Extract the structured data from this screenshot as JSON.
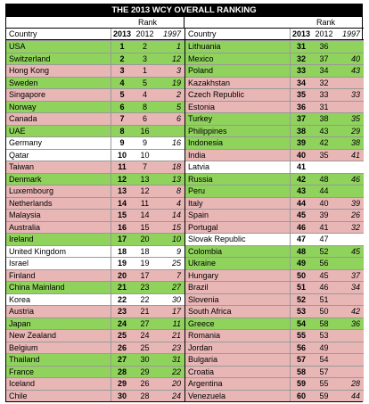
{
  "title": "THE 2013 WCY OVERALL RANKING",
  "rank_label": "Rank",
  "headers": {
    "country": "Country",
    "y2013": "2013",
    "y2012": "2012",
    "y1997": "1997"
  },
  "colors": {
    "green": "#8fd25c",
    "pink": "#e9b6b6",
    "white": "#ffffff"
  },
  "left": [
    {
      "country": "USA",
      "r2013": "1",
      "r2012": "2",
      "r1997": "1",
      "shade": "g"
    },
    {
      "country": "Switzerland",
      "r2013": "2",
      "r2012": "3",
      "r1997": "12",
      "shade": "g"
    },
    {
      "country": "Hong Kong",
      "r2013": "3",
      "r2012": "1",
      "r1997": "3",
      "shade": "p"
    },
    {
      "country": "Sweden",
      "r2013": "4",
      "r2012": "5",
      "r1997": "19",
      "shade": "g"
    },
    {
      "country": "Singapore",
      "r2013": "5",
      "r2012": "4",
      "r1997": "2",
      "shade": "p"
    },
    {
      "country": "Norway",
      "r2013": "6",
      "r2012": "8",
      "r1997": "5",
      "shade": "g"
    },
    {
      "country": "Canada",
      "r2013": "7",
      "r2012": "6",
      "r1997": "6",
      "shade": "p"
    },
    {
      "country": "UAE",
      "r2013": "8",
      "r2012": "16",
      "r1997": "",
      "shade": "g"
    },
    {
      "country": "Germany",
      "r2013": "9",
      "r2012": "9",
      "r1997": "16",
      "shade": "w"
    },
    {
      "country": "Qatar",
      "r2013": "10",
      "r2012": "10",
      "r1997": "",
      "shade": "w"
    },
    {
      "country": "Taiwan",
      "r2013": "11",
      "r2012": "7",
      "r1997": "18",
      "shade": "p"
    },
    {
      "country": "Denmark",
      "r2013": "12",
      "r2012": "13",
      "r1997": "13",
      "shade": "g"
    },
    {
      "country": "Luxembourg",
      "r2013": "13",
      "r2012": "12",
      "r1997": "8",
      "shade": "p"
    },
    {
      "country": "Netherlands",
      "r2013": "14",
      "r2012": "11",
      "r1997": "4",
      "shade": "p"
    },
    {
      "country": "Malaysia",
      "r2013": "15",
      "r2012": "14",
      "r1997": "14",
      "shade": "p"
    },
    {
      "country": "Australia",
      "r2013": "16",
      "r2012": "15",
      "r1997": "15",
      "shade": "p"
    },
    {
      "country": "Ireland",
      "r2013": "17",
      "r2012": "20",
      "r1997": "10",
      "shade": "g"
    },
    {
      "country": "United Kingdom",
      "r2013": "18",
      "r2012": "18",
      "r1997": "9",
      "shade": "w"
    },
    {
      "country": "Israel",
      "r2013": "19",
      "r2012": "19",
      "r1997": "25",
      "shade": "w"
    },
    {
      "country": "Finland",
      "r2013": "20",
      "r2012": "17",
      "r1997": "7",
      "shade": "p"
    },
    {
      "country": "China Mainland",
      "r2013": "21",
      "r2012": "23",
      "r1997": "27",
      "shade": "g"
    },
    {
      "country": "Korea",
      "r2013": "22",
      "r2012": "22",
      "r1997": "30",
      "shade": "w"
    },
    {
      "country": "Austria",
      "r2013": "23",
      "r2012": "21",
      "r1997": "17",
      "shade": "p"
    },
    {
      "country": "Japan",
      "r2013": "24",
      "r2012": "27",
      "r1997": "11",
      "shade": "g"
    },
    {
      "country": "New Zealand",
      "r2013": "25",
      "r2012": "24",
      "r1997": "21",
      "shade": "p"
    },
    {
      "country": "Belgium",
      "r2013": "26",
      "r2012": "25",
      "r1997": "23",
      "shade": "p"
    },
    {
      "country": "Thailand",
      "r2013": "27",
      "r2012": "30",
      "r1997": "31",
      "shade": "g"
    },
    {
      "country": "France",
      "r2013": "28",
      "r2012": "29",
      "r1997": "22",
      "shade": "g"
    },
    {
      "country": "Iceland",
      "r2013": "29",
      "r2012": "26",
      "r1997": "20",
      "shade": "p"
    },
    {
      "country": "Chile",
      "r2013": "30",
      "r2012": "28",
      "r1997": "24",
      "shade": "p"
    }
  ],
  "right": [
    {
      "country": "Lithuania",
      "r2013": "31",
      "r2012": "36",
      "r1997": "",
      "shade": "g"
    },
    {
      "country": "Mexico",
      "r2013": "32",
      "r2012": "37",
      "r1997": "40",
      "shade": "g"
    },
    {
      "country": "Poland",
      "r2013": "33",
      "r2012": "34",
      "r1997": "43",
      "shade": "g"
    },
    {
      "country": "Kazakhstan",
      "r2013": "34",
      "r2012": "32",
      "r1997": "",
      "shade": "p"
    },
    {
      "country": "Czech Republic",
      "r2013": "35",
      "r2012": "33",
      "r1997": "33",
      "shade": "p"
    },
    {
      "country": "Estonia",
      "r2013": "36",
      "r2012": "31",
      "r1997": "",
      "shade": "p"
    },
    {
      "country": "Turkey",
      "r2013": "37",
      "r2012": "38",
      "r1997": "35",
      "shade": "g"
    },
    {
      "country": "Philippines",
      "r2013": "38",
      "r2012": "43",
      "r1997": "29",
      "shade": "g"
    },
    {
      "country": "Indonesia",
      "r2013": "39",
      "r2012": "42",
      "r1997": "38",
      "shade": "g"
    },
    {
      "country": "India",
      "r2013": "40",
      "r2012": "35",
      "r1997": "41",
      "shade": "p"
    },
    {
      "country": "Latvia",
      "r2013": "41",
      "r2012": "",
      "r1997": "",
      "shade": "w"
    },
    {
      "country": "Russia",
      "r2013": "42",
      "r2012": "48",
      "r1997": "46",
      "shade": "g"
    },
    {
      "country": "Peru",
      "r2013": "43",
      "r2012": "44",
      "r1997": "",
      "shade": "g"
    },
    {
      "country": "Italy",
      "r2013": "44",
      "r2012": "40",
      "r1997": "39",
      "shade": "p"
    },
    {
      "country": "Spain",
      "r2013": "45",
      "r2012": "39",
      "r1997": "26",
      "shade": "p"
    },
    {
      "country": "Portugal",
      "r2013": "46",
      "r2012": "41",
      "r1997": "32",
      "shade": "p"
    },
    {
      "country": "Slovak Republic",
      "r2013": "47",
      "r2012": "47",
      "r1997": "",
      "shade": "w"
    },
    {
      "country": "Colombia",
      "r2013": "48",
      "r2012": "52",
      "r1997": "45",
      "shade": "g"
    },
    {
      "country": "Ukraine",
      "r2013": "49",
      "r2012": "56",
      "r1997": "",
      "shade": "g"
    },
    {
      "country": "Hungary",
      "r2013": "50",
      "r2012": "45",
      "r1997": "37",
      "shade": "p"
    },
    {
      "country": "Brazil",
      "r2013": "51",
      "r2012": "46",
      "r1997": "34",
      "shade": "p"
    },
    {
      "country": "Slovenia",
      "r2013": "52",
      "r2012": "51",
      "r1997": "",
      "shade": "p"
    },
    {
      "country": "South Africa",
      "r2013": "53",
      "r2012": "50",
      "r1997": "42",
      "shade": "p"
    },
    {
      "country": "Greece",
      "r2013": "54",
      "r2012": "58",
      "r1997": "36",
      "shade": "g"
    },
    {
      "country": "Romania",
      "r2013": "55",
      "r2012": "53",
      "r1997": "",
      "shade": "p"
    },
    {
      "country": "Jordan",
      "r2013": "56",
      "r2012": "49",
      "r1997": "",
      "shade": "p"
    },
    {
      "country": "Bulgaria",
      "r2013": "57",
      "r2012": "54",
      "r1997": "",
      "shade": "p"
    },
    {
      "country": "Croatia",
      "r2013": "58",
      "r2012": "57",
      "r1997": "",
      "shade": "p"
    },
    {
      "country": "Argentina",
      "r2013": "59",
      "r2012": "55",
      "r1997": "28",
      "shade": "p"
    },
    {
      "country": "Venezuela",
      "r2013": "60",
      "r2012": "59",
      "r1997": "44",
      "shade": "p"
    }
  ]
}
